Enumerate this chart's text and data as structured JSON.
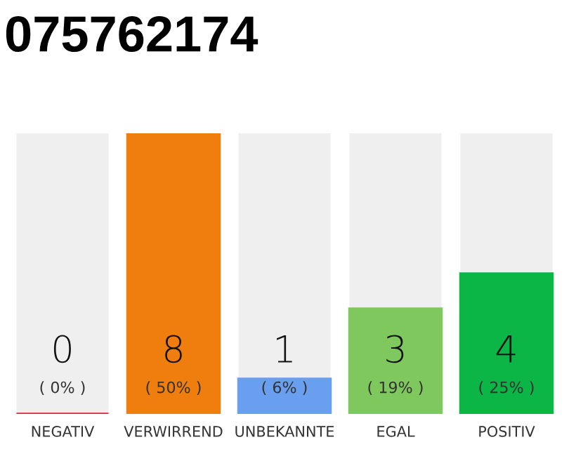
{
  "chart_data": {
    "type": "bar",
    "title": "075762174",
    "categories": [
      "NEGATIV",
      "VERWIRREND",
      "UNBEKANNTE",
      "EGAL",
      "POSITIV"
    ],
    "values": [
      0,
      8,
      1,
      3,
      4
    ],
    "colors": [
      "#e8203a",
      "#f07e0e",
      "#6a9ff0",
      "#7ec85e",
      "#0bb546"
    ],
    "value_labels": [
      "0",
      "8",
      "1",
      "3",
      "4"
    ],
    "annotations": [
      "( 0% )",
      "( 50% )",
      "( 6% )",
      "( 19% )",
      "( 25% )"
    ],
    "grid": false,
    "legend": false
  }
}
